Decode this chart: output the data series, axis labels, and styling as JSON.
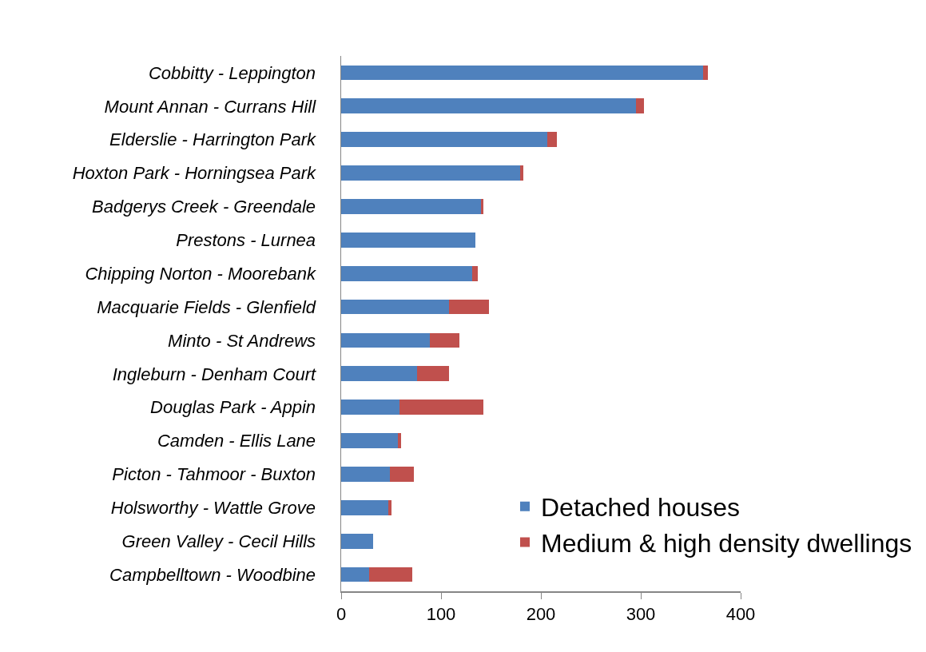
{
  "chart_data": {
    "type": "bar",
    "orientation": "horizontal",
    "stacked": true,
    "categories": [
      "Cobbitty - Leppington",
      "Mount Annan - Currans Hill",
      "Elderslie - Harrington Park",
      "Hoxton Park - Horningsea Park",
      "Badgerys Creek - Greendale",
      "Prestons - Lurnea",
      "Chipping Norton - Moorebank",
      "Macquarie Fields - Glenfield",
      "Minto - St Andrews",
      "Ingleburn - Denham Court",
      "Douglas Park - Appin",
      "Camden - Ellis Lane",
      "Picton - Tahmoor - Buxton",
      "Holsworthy - Wattle Grove",
      "Green Valley - Cecil Hills",
      "Campbelltown - Woodbine"
    ],
    "series": [
      {
        "name": "Detached houses",
        "color": "#4f81bd",
        "values": [
          362,
          295,
          206,
          179,
          140,
          134,
          131,
          108,
          89,
          76,
          58,
          57,
          49,
          47,
          32,
          28
        ]
      },
      {
        "name": "Medium & high density dwellings",
        "color": "#c0504d",
        "values": [
          5,
          8,
          10,
          3,
          2,
          0,
          6,
          40,
          29,
          32,
          84,
          3,
          24,
          3,
          0,
          43
        ]
      }
    ],
    "xlim": [
      0,
      400
    ],
    "xticks": [
      0,
      100,
      200,
      300,
      400
    ],
    "grid": false,
    "legend": "bottom right"
  }
}
